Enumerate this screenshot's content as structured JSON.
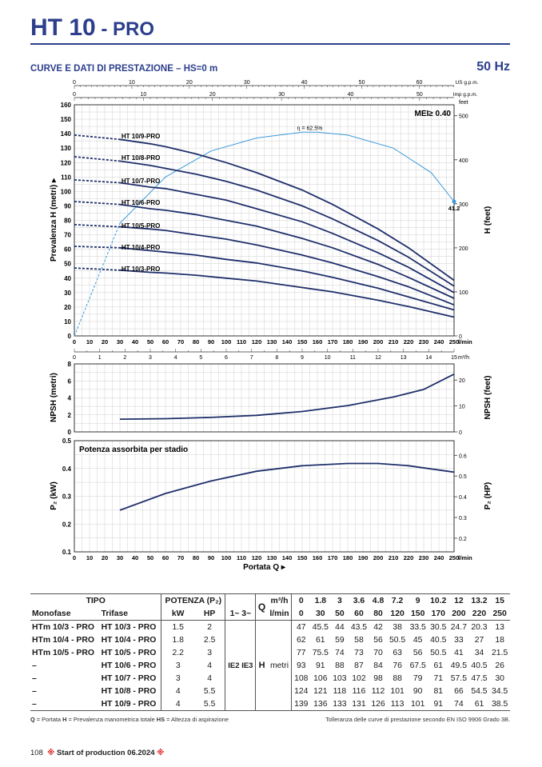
{
  "header": {
    "title_main": "HT 10",
    "title_suffix": " - PRO",
    "subtitle": "CURVE E DATI DI PRESTAZIONE  –  HS=0 m",
    "frequency": "50 Hz"
  },
  "colors": {
    "brand": "#2c3e8c",
    "curve": "#1f2f6b",
    "efficiency": "#3a9ad9",
    "grid": "#cfcfcf"
  },
  "chart_data": [
    {
      "type": "line",
      "name": "head-chart",
      "ylabel": "Prevalenza  H  (metri)",
      "ylabel_right": "H  (feet)",
      "xlim": [
        0,
        250
      ],
      "ylim": [
        0,
        160
      ],
      "x_ticks": [
        0,
        10,
        20,
        30,
        40,
        50,
        60,
        70,
        80,
        90,
        100,
        110,
        120,
        130,
        140,
        150,
        160,
        170,
        180,
        190,
        200,
        210,
        220,
        230,
        240,
        250
      ],
      "x_unit": "l/min",
      "y_ticks": [
        0,
        10,
        20,
        30,
        40,
        50,
        60,
        70,
        80,
        90,
        100,
        110,
        120,
        130,
        140,
        150,
        160
      ],
      "feet_ticks": [
        0,
        100,
        200,
        300,
        400,
        500
      ],
      "feet_unit": "feet",
      "top_axis_us": {
        "ticks": [
          0,
          10,
          20,
          30,
          40,
          50,
          60
        ],
        "unit": "US g.p.m.",
        "factor": 3.785
      },
      "top_axis_imp": {
        "ticks": [
          0,
          10,
          20,
          30,
          40,
          50
        ],
        "unit": "Imp g.p.m.",
        "factor": 4.546
      },
      "bottom_axis_m3h": {
        "ticks": [
          0,
          1,
          2,
          3,
          4,
          5,
          6,
          7,
          8,
          9,
          10,
          11,
          12,
          13,
          14,
          15
        ],
        "unit": "m³/h"
      },
      "mei": "MEI≥ 0.40",
      "efficiency": {
        "label": "η = 62.5%",
        "end_label": "41.2",
        "x": [
          0,
          30,
          60,
          90,
          120,
          150,
          160,
          180,
          210,
          235,
          250
        ],
        "y": [
          0,
          78,
          110,
          128,
          137,
          141,
          141,
          139,
          130,
          113,
          93
        ]
      },
      "dashed_until": 30,
      "series": [
        {
          "name": "HT 10/9-PRO",
          "x": [
            0,
            30,
            50,
            60,
            80,
            100,
            120,
            150,
            170,
            200,
            220,
            250
          ],
          "y": [
            139,
            136,
            133,
            131,
            126,
            120,
            113,
            101,
            91,
            74,
            61,
            38.5
          ]
        },
        {
          "name": "HT 10/8-PRO",
          "x": [
            0,
            30,
            50,
            60,
            80,
            100,
            120,
            150,
            170,
            200,
            220,
            250
          ],
          "y": [
            124,
            121,
            118,
            116,
            112,
            107,
            101,
            90,
            81,
            66,
            54.5,
            34.5
          ]
        },
        {
          "name": "HT 10/7-PRO",
          "x": [
            0,
            30,
            50,
            60,
            80,
            100,
            120,
            150,
            170,
            200,
            220,
            250
          ],
          "y": [
            108,
            106,
            103,
            102,
            98,
            94,
            88,
            79,
            71,
            57.5,
            47.5,
            30
          ]
        },
        {
          "name": "HT 10/6-PRO",
          "x": [
            0,
            30,
            50,
            60,
            80,
            100,
            120,
            150,
            170,
            200,
            220,
            250
          ],
          "y": [
            93,
            91,
            88,
            87,
            84,
            80,
            76,
            67.5,
            61,
            49.5,
            40.5,
            26
          ]
        },
        {
          "name": "HT 10/5-PRO",
          "x": [
            0,
            30,
            50,
            60,
            80,
            100,
            120,
            150,
            170,
            200,
            220,
            250
          ],
          "y": [
            77,
            75.5,
            74,
            73,
            70,
            67,
            63,
            56,
            50.5,
            41,
            34,
            21.5
          ]
        },
        {
          "name": "HT 10/4-PRO",
          "x": [
            0,
            30,
            50,
            60,
            80,
            100,
            120,
            150,
            170,
            200,
            220,
            250
          ],
          "y": [
            62,
            61,
            59,
            58,
            56,
            53,
            50.5,
            45,
            40.5,
            33,
            27,
            18
          ]
        },
        {
          "name": "HT 10/3-PRO",
          "x": [
            0,
            30,
            50,
            60,
            80,
            100,
            120,
            150,
            170,
            200,
            220,
            250
          ],
          "y": [
            47,
            45.5,
            44,
            43.5,
            42,
            40,
            38,
            33.5,
            30.5,
            24.7,
            20.3,
            13
          ]
        }
      ]
    },
    {
      "type": "line",
      "name": "npsh-chart",
      "ylabel": "NPSH  (metri)",
      "ylabel_right": "NPSH  (feet)",
      "xlim": [
        0,
        250
      ],
      "ylim": [
        0,
        8
      ],
      "y_ticks": [
        0,
        2,
        4,
        6,
        8
      ],
      "feet_ticks": [
        0,
        10,
        20
      ],
      "x": [
        30,
        60,
        90,
        120,
        150,
        180,
        210,
        230,
        250
      ],
      "y": [
        1.5,
        1.55,
        1.7,
        1.95,
        2.4,
        3.1,
        4.1,
        5.0,
        6.8
      ]
    },
    {
      "type": "line",
      "name": "power-chart",
      "title": "Potenza assorbita per stadio",
      "ylabel": "P₂  (kW)",
      "ylabel_right": "P₂  (HP)",
      "xlabel": "Portata  Q",
      "x_unit": "l/min",
      "xlim": [
        0,
        250
      ],
      "x_ticks": [
        0,
        10,
        20,
        30,
        40,
        50,
        60,
        70,
        80,
        90,
        100,
        110,
        120,
        130,
        140,
        150,
        160,
        170,
        180,
        190,
        200,
        210,
        220,
        230,
        240,
        250
      ],
      "ylim": [
        0.1,
        0.5
      ],
      "y_ticks": [
        0.1,
        0.2,
        0.3,
        0.4,
        0.5
      ],
      "hp_ticks": [
        0.2,
        0.3,
        0.4,
        0.5,
        0.6
      ],
      "x": [
        30,
        60,
        90,
        120,
        150,
        180,
        200,
        220,
        250
      ],
      "y": [
        0.25,
        0.31,
        0.355,
        0.39,
        0.41,
        0.418,
        0.418,
        0.41,
        0.387
      ]
    }
  ],
  "table": {
    "h_tipo": "TIPO",
    "h_potenza": "POTENZA (P₂)",
    "h_q": "Q",
    "h_m3h": "m³/h",
    "h_lmin": "l/min",
    "h_monofase": "Monofase",
    "h_trifase": "Trifase",
    "h_kw": "kW",
    "h_hp": "HP",
    "h_phase": "1~ 3~",
    "m3h": [
      "0",
      "1.8",
      "3",
      "3.6",
      "4.8",
      "7.2",
      "9",
      "10.2",
      "12",
      "13.2",
      "15"
    ],
    "lmin": [
      "0",
      "30",
      "50",
      "60",
      "80",
      "120",
      "150",
      "170",
      "200",
      "220",
      "250"
    ],
    "h_label": "H",
    "metri": "metri",
    "ie": "IE2 IE3",
    "rows": [
      {
        "mono": "HTm 10/3 - PRO",
        "tri": "HT 10/3 - PRO",
        "kw": "1.5",
        "hp": "2",
        "h": [
          "47",
          "45.5",
          "44",
          "43.5",
          "42",
          "38",
          "33.5",
          "30.5",
          "24.7",
          "20.3",
          "13"
        ]
      },
      {
        "mono": "HTm 10/4 - PRO",
        "tri": "HT 10/4 - PRO",
        "kw": "1.8",
        "hp": "2.5",
        "h": [
          "62",
          "61",
          "59",
          "58",
          "56",
          "50.5",
          "45",
          "40.5",
          "33",
          "27",
          "18"
        ]
      },
      {
        "mono": "HTm 10/5 - PRO",
        "tri": "HT 10/5 - PRO",
        "kw": "2.2",
        "hp": "3",
        "h": [
          "77",
          "75.5",
          "74",
          "73",
          "70",
          "63",
          "56",
          "50.5",
          "41",
          "34",
          "21.5"
        ]
      },
      {
        "mono": "–",
        "tri": "HT 10/6 - PRO",
        "kw": "3",
        "hp": "4",
        "h": [
          "93",
          "91",
          "88",
          "87",
          "84",
          "76",
          "67.5",
          "61",
          "49.5",
          "40.5",
          "26"
        ]
      },
      {
        "mono": "–",
        "tri": "HT 10/7 - PRO",
        "kw": "3",
        "hp": "4",
        "h": [
          "108",
          "106",
          "103",
          "102",
          "98",
          "88",
          "79",
          "71",
          "57.5",
          "47.5",
          "30"
        ]
      },
      {
        "mono": "–",
        "tri": "HT 10/8 - PRO",
        "kw": "4",
        "hp": "5.5",
        "h": [
          "124",
          "121",
          "118",
          "116",
          "112",
          "101",
          "90",
          "81",
          "66",
          "54.5",
          "34.5"
        ]
      },
      {
        "mono": "–",
        "tri": "HT 10/9 - PRO",
        "kw": "4",
        "hp": "5.5",
        "h": [
          "139",
          "136",
          "133",
          "131",
          "126",
          "113",
          "101",
          "91",
          "74",
          "61",
          "38.5"
        ]
      }
    ]
  },
  "notes": {
    "legend_q": "Q",
    "legend_q_text": " = Portata  ",
    "legend_h": "H",
    "legend_h_text": " = Prevalenza manometrica totale  ",
    "legend_hs": "HS",
    "legend_hs_text": " = Altezza di aspirazione",
    "tolerance": "Tolleranza delle curve di prestazione secondo EN ISO 9906 Grado 3B."
  },
  "footer": {
    "page": "108",
    "star": "※",
    "text": "Start of production",
    "date": "06.2024"
  }
}
